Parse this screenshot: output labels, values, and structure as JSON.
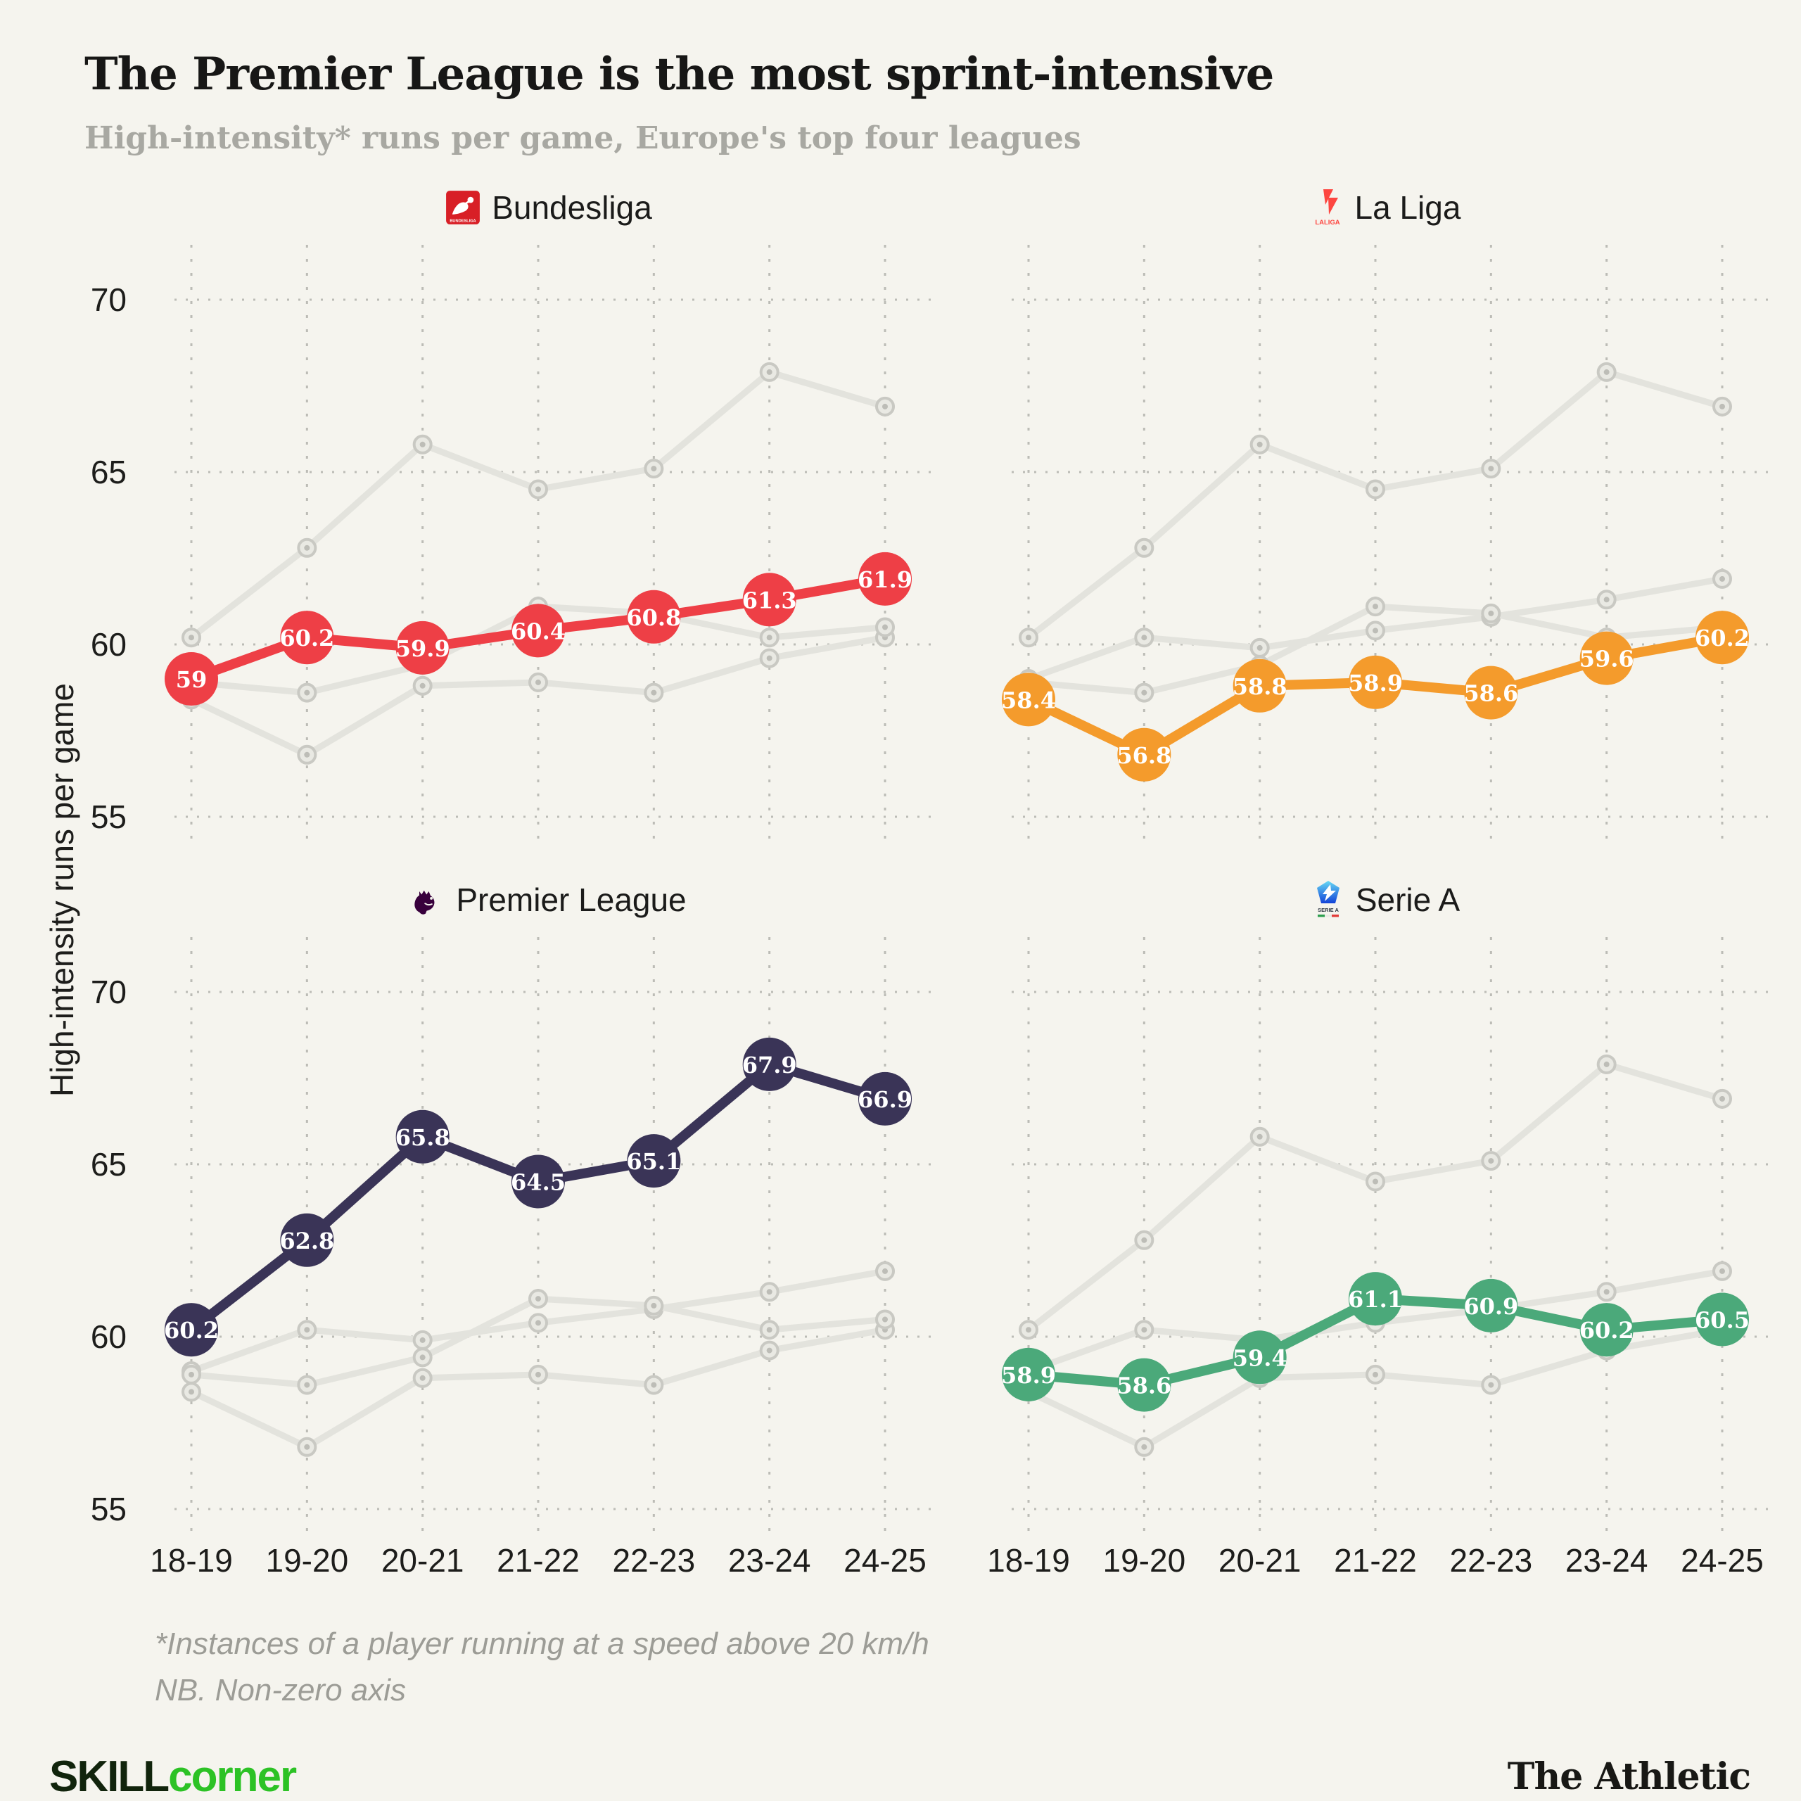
{
  "header": {
    "title": "The Premier League is the most sprint-intensive",
    "subtitle": "High-intensity* runs per game, Europe's top four leagues"
  },
  "footnote": {
    "line1": "*Instances of a player running at a speed above 20 km/h",
    "line2": "NB. Non-zero axis"
  },
  "footer": {
    "brand_left_part1": "SKILL",
    "brand_left_part2": "corner",
    "brand_right": "The Athletic"
  },
  "logos": {
    "bundesliga_text": "BUNDESLIGA",
    "laliga_text": "LALIGA",
    "seriea_text": "SERIE A"
  },
  "chart_data": {
    "type": "line",
    "small_multiples": true,
    "title": "The Premier League is the most sprint-intensive",
    "subtitle": "High-intensity* runs per game, Europe's top four leagues",
    "xlabel": "",
    "ylabel": "High-intensity runs per game",
    "categories": [
      "18-19",
      "19-20",
      "20-21",
      "21-22",
      "22-23",
      "23-24",
      "24-25"
    ],
    "y_ticks": [
      55,
      60,
      65,
      70
    ],
    "ylim": [
      53.5,
      71.5
    ],
    "grid": "dotted",
    "legend_position": "panel-headers",
    "series": [
      {
        "name": "Bundesliga",
        "color": "#ee3f46",
        "values": [
          59,
          60.2,
          59.9,
          60.4,
          60.8,
          61.3,
          61.9
        ]
      },
      {
        "name": "La Liga",
        "color": "#f49b2c",
        "values": [
          58.4,
          56.8,
          58.8,
          58.9,
          58.6,
          59.6,
          60.2
        ]
      },
      {
        "name": "Premier League",
        "color": "#3a3457",
        "values": [
          60.2,
          62.8,
          65.8,
          64.5,
          65.1,
          67.9,
          66.9
        ]
      },
      {
        "name": "Serie A",
        "color": "#4ba97a",
        "values": [
          58.9,
          58.6,
          59.4,
          61.1,
          60.9,
          60.2,
          60.5
        ]
      }
    ],
    "panels": [
      {
        "series_index": 0,
        "col": "left",
        "y_labels": true,
        "x_labels": false
      },
      {
        "series_index": 1,
        "col": "right",
        "y_labels": false,
        "x_labels": false
      },
      {
        "series_index": 2,
        "col": "left",
        "y_labels": true,
        "x_labels": true
      },
      {
        "series_index": 3,
        "col": "right",
        "y_labels": false,
        "x_labels": true
      }
    ],
    "style_colors": {
      "background": "#f5f4ee",
      "inactive_line": "#e3e3dd",
      "inactive_marker_ring": "#c9c9c3",
      "inactive_marker_fill": "#e9e9e3",
      "inactive_marker_dot": "#bdbdb7",
      "grid_dots": "#bcbcb6",
      "axis_text": "#1d1d1b",
      "data_label_text": "#ffffff"
    }
  }
}
